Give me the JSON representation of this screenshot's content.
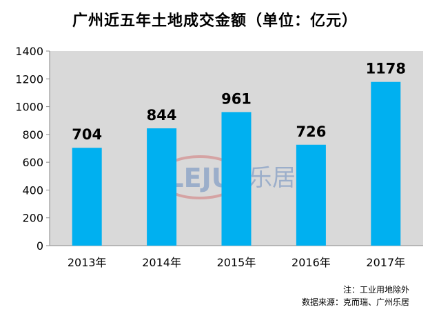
{
  "chart_data": {
    "type": "bar",
    "title": "广州近五年土地成交金额（单位：亿元）",
    "categories": [
      "2013年",
      "2014年",
      "2015年",
      "2016年",
      "2017年"
    ],
    "values": [
      704,
      844,
      961,
      726,
      1178
    ],
    "ylim": [
      0,
      1400
    ],
    "yticks": [
      0,
      200,
      400,
      600,
      800,
      1000,
      1200,
      1400
    ],
    "grid": false,
    "legend": "none",
    "bar_color": "#00b0f0",
    "plot_background": "#d9d9d9"
  },
  "watermark": {
    "logo_text": "LEJU",
    "brand_text": "乐居"
  },
  "footnote": {
    "note": "注：工业用地除外",
    "source": "数据来源：克而瑞、广州乐居"
  }
}
